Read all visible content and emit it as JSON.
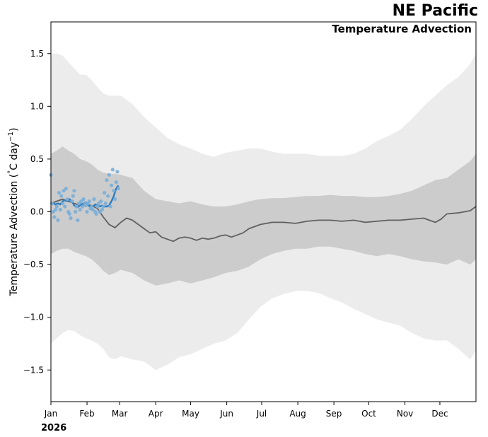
{
  "header": {
    "title": "NE Pacific",
    "subtitle": "Temperature Advection",
    "year": "2026"
  },
  "chart_data": {
    "type": "line",
    "title": "NE Pacific",
    "subtitle": "Temperature Advection",
    "ylabel": "Temperature Advection (°C day⁻¹)",
    "ylabel_parts": {
      "main": "Temperature Advection (",
      "deg": "°",
      "unit": "C day",
      "exp": "−1",
      "close": ")"
    },
    "xlabel": "",
    "x_units": "day of year",
    "xlim": [
      0,
      365
    ],
    "ylim": [
      -1.8,
      1.8
    ],
    "yticks": [
      -1.5,
      -1.0,
      -0.5,
      0.0,
      0.5,
      1.0,
      1.5
    ],
    "ytick_labels": [
      "−1.5",
      "−1.0",
      "−0.5",
      "0.0",
      "0.5",
      "1.0",
      "1.5"
    ],
    "month_ticks": [
      0,
      31,
      59,
      90,
      120,
      151,
      181,
      212,
      243,
      273,
      304,
      334
    ],
    "month_labels": [
      "Jan",
      "Feb",
      "Mar",
      "Apr",
      "May",
      "Jun",
      "Jul",
      "Aug",
      "Sep",
      "Oct",
      "Nov",
      "Dec"
    ],
    "colors": {
      "outer_band": "#ececec",
      "inner_band": "#cccccc",
      "climatology": "#606060",
      "current_line": "#2f7bbd",
      "current_points": "#7aaed8"
    },
    "series": [
      {
        "name": "Outer range upper",
        "x": [
          0,
          5,
          10,
          15,
          20,
          25,
          30,
          35,
          40,
          45,
          50,
          55,
          60,
          70,
          80,
          90,
          100,
          110,
          120,
          130,
          140,
          150,
          160,
          170,
          180,
          190,
          200,
          210,
          220,
          230,
          240,
          250,
          260,
          270,
          280,
          290,
          300,
          310,
          320,
          330,
          340,
          350,
          360,
          365
        ],
        "values": [
          1.5,
          1.5,
          1.48,
          1.42,
          1.36,
          1.3,
          1.3,
          1.25,
          1.18,
          1.12,
          1.1,
          1.1,
          1.1,
          1.02,
          0.9,
          0.8,
          0.7,
          0.64,
          0.6,
          0.55,
          0.52,
          0.56,
          0.58,
          0.6,
          0.6,
          0.57,
          0.55,
          0.55,
          0.55,
          0.53,
          0.53,
          0.53,
          0.55,
          0.6,
          0.67,
          0.72,
          0.78,
          0.88,
          1.0,
          1.1,
          1.2,
          1.28,
          1.4,
          1.5
        ]
      },
      {
        "name": "Outer range lower",
        "x": [
          0,
          5,
          10,
          15,
          20,
          25,
          30,
          35,
          40,
          45,
          50,
          55,
          60,
          70,
          80,
          90,
          100,
          110,
          120,
          130,
          140,
          150,
          160,
          170,
          180,
          190,
          200,
          210,
          220,
          230,
          240,
          250,
          260,
          270,
          280,
          290,
          300,
          310,
          320,
          330,
          340,
          350,
          360,
          365
        ],
        "values": [
          -1.25,
          -1.2,
          -1.15,
          -1.12,
          -1.13,
          -1.17,
          -1.2,
          -1.22,
          -1.25,
          -1.3,
          -1.38,
          -1.4,
          -1.37,
          -1.4,
          -1.42,
          -1.5,
          -1.45,
          -1.38,
          -1.35,
          -1.3,
          -1.25,
          -1.22,
          -1.15,
          -1.02,
          -0.9,
          -0.82,
          -0.78,
          -0.75,
          -0.75,
          -0.77,
          -0.82,
          -0.86,
          -0.92,
          -0.97,
          -1.02,
          -1.05,
          -1.08,
          -1.15,
          -1.2,
          -1.22,
          -1.22,
          -1.3,
          -1.4,
          -1.32
        ]
      },
      {
        "name": "Inner range upper",
        "x": [
          0,
          5,
          10,
          15,
          20,
          25,
          30,
          35,
          40,
          45,
          50,
          55,
          60,
          70,
          80,
          90,
          100,
          110,
          120,
          130,
          140,
          150,
          160,
          170,
          180,
          190,
          200,
          210,
          220,
          230,
          240,
          250,
          260,
          270,
          280,
          290,
          300,
          310,
          320,
          330,
          340,
          350,
          360,
          365
        ],
        "values": [
          0.55,
          0.58,
          0.62,
          0.58,
          0.55,
          0.5,
          0.48,
          0.45,
          0.4,
          0.37,
          0.36,
          0.36,
          0.35,
          0.32,
          0.2,
          0.12,
          0.1,
          0.08,
          0.1,
          0.07,
          0.05,
          0.05,
          0.07,
          0.1,
          0.12,
          0.13,
          0.13,
          0.14,
          0.15,
          0.15,
          0.16,
          0.15,
          0.15,
          0.14,
          0.14,
          0.15,
          0.17,
          0.2,
          0.25,
          0.3,
          0.32,
          0.4,
          0.48,
          0.55
        ]
      },
      {
        "name": "Inner range lower",
        "x": [
          0,
          5,
          10,
          15,
          20,
          25,
          30,
          35,
          40,
          45,
          50,
          55,
          60,
          70,
          80,
          90,
          100,
          110,
          120,
          130,
          140,
          150,
          160,
          170,
          180,
          190,
          200,
          210,
          220,
          230,
          240,
          250,
          260,
          270,
          280,
          290,
          300,
          310,
          320,
          330,
          340,
          350,
          360,
          365
        ],
        "values": [
          -0.4,
          -0.37,
          -0.35,
          -0.35,
          -0.38,
          -0.4,
          -0.42,
          -0.45,
          -0.5,
          -0.56,
          -0.6,
          -0.58,
          -0.55,
          -0.58,
          -0.65,
          -0.7,
          -0.68,
          -0.65,
          -0.68,
          -0.65,
          -0.62,
          -0.58,
          -0.56,
          -0.52,
          -0.45,
          -0.4,
          -0.37,
          -0.35,
          -0.35,
          -0.33,
          -0.33,
          -0.35,
          -0.37,
          -0.4,
          -0.42,
          -0.4,
          -0.42,
          -0.45,
          -0.47,
          -0.48,
          -0.5,
          -0.45,
          -0.5,
          -0.45
        ]
      },
      {
        "name": "Climatology median",
        "x": [
          0,
          5,
          10,
          15,
          20,
          25,
          30,
          35,
          40,
          45,
          50,
          55,
          60,
          65,
          70,
          75,
          80,
          85,
          90,
          95,
          100,
          105,
          110,
          115,
          120,
          125,
          130,
          135,
          140,
          145,
          150,
          155,
          160,
          165,
          170,
          175,
          180,
          190,
          200,
          210,
          220,
          230,
          240,
          250,
          260,
          270,
          280,
          290,
          300,
          310,
          320,
          330,
          335,
          340,
          350,
          360,
          365
        ],
        "values": [
          0.08,
          0.1,
          0.12,
          0.1,
          0.08,
          0.06,
          0.07,
          0.06,
          0.03,
          -0.05,
          -0.12,
          -0.15,
          -0.1,
          -0.06,
          -0.08,
          -0.12,
          -0.16,
          -0.2,
          -0.19,
          -0.24,
          -0.26,
          -0.28,
          -0.25,
          -0.24,
          -0.25,
          -0.27,
          -0.25,
          -0.26,
          -0.25,
          -0.23,
          -0.22,
          -0.24,
          -0.22,
          -0.2,
          -0.16,
          -0.14,
          -0.12,
          -0.1,
          -0.1,
          -0.11,
          -0.09,
          -0.08,
          -0.08,
          -0.09,
          -0.08,
          -0.1,
          -0.09,
          -0.08,
          -0.08,
          -0.07,
          -0.06,
          -0.1,
          -0.07,
          -0.02,
          -0.01,
          0.01,
          0.05
        ]
      },
      {
        "name": "2026 (smoothed)",
        "x": [
          0,
          2,
          4,
          6,
          8,
          10,
          12,
          14,
          16,
          18,
          20,
          22,
          24,
          26,
          28,
          30,
          32,
          34,
          36,
          38,
          40,
          42,
          44,
          46,
          48,
          50,
          52,
          54,
          56,
          58
        ],
        "values": [
          0.08,
          0.08,
          0.07,
          0.08,
          0.07,
          0.1,
          0.11,
          0.1,
          0.12,
          0.1,
          0.06,
          0.04,
          0.05,
          0.07,
          0.08,
          0.09,
          0.06,
          0.05,
          0.05,
          0.07,
          0.06,
          0.05,
          0.06,
          0.05,
          0.05,
          0.06,
          0.1,
          0.15,
          0.22,
          0.25
        ]
      },
      {
        "name": "2026 (daily points)",
        "x": [
          0,
          1,
          2,
          3,
          4,
          5,
          6,
          7,
          8,
          9,
          10,
          11,
          12,
          13,
          14,
          15,
          16,
          17,
          18,
          19,
          20,
          21,
          22,
          23,
          24,
          25,
          26,
          27,
          28,
          29,
          30,
          31,
          32,
          33,
          34,
          35,
          36,
          37,
          38,
          39,
          40,
          41,
          42,
          43,
          44,
          45,
          46,
          47,
          48,
          49,
          50,
          51,
          52,
          53,
          54,
          55,
          56,
          57,
          58
        ],
        "values": [
          0.35,
          0.08,
          0.0,
          -0.05,
          0.02,
          0.05,
          -0.08,
          0.18,
          0.02,
          0.15,
          0.08,
          0.2,
          0.05,
          0.22,
          0.12,
          0.0,
          -0.02,
          -0.06,
          0.1,
          0.15,
          0.2,
          0.0,
          0.05,
          -0.08,
          0.08,
          0.02,
          0.1,
          0.05,
          0.12,
          0.08,
          0.06,
          0.0,
          0.08,
          0.1,
          0.03,
          0.05,
          0.02,
          0.12,
          0.0,
          -0.02,
          0.05,
          0.08,
          0.0,
          0.1,
          0.02,
          0.05,
          0.18,
          0.08,
          0.3,
          0.15,
          0.35,
          0.05,
          0.25,
          0.4,
          0.2,
          0.12,
          0.28,
          0.38,
          0.22
        ]
      }
    ]
  }
}
